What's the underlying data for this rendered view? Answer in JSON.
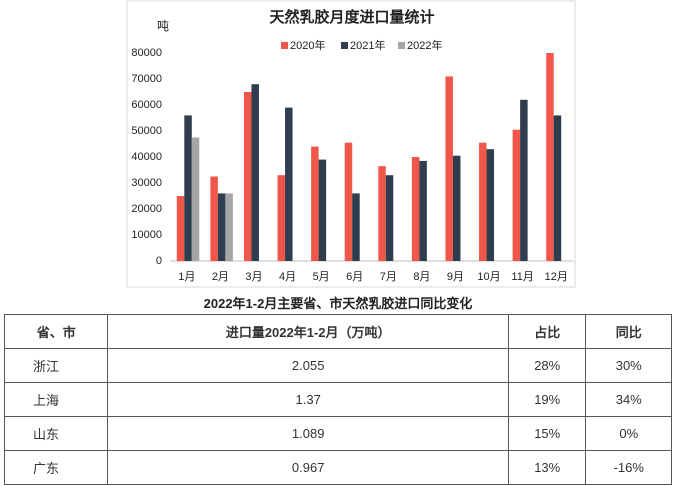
{
  "chart_data": {
    "type": "bar",
    "title": "天然乳胶月度进口量统计",
    "y_label": "吨",
    "categories": [
      "1月",
      "2月",
      "3月",
      "4月",
      "5月",
      "6月",
      "7月",
      "8月",
      "9月",
      "10月",
      "11月",
      "12月"
    ],
    "series": [
      {
        "name": "2020年",
        "color": "#f0574a",
        "values": [
          25000,
          32500,
          65000,
          33000,
          44000,
          45500,
          36500,
          40000,
          71000,
          45500,
          50500,
          80000
        ]
      },
      {
        "name": "2021年",
        "color": "#2e3e4e",
        "values": [
          56000,
          26000,
          68000,
          59000,
          39000,
          26000,
          33000,
          38500,
          40500,
          43000,
          62000,
          56000
        ]
      },
      {
        "name": "2022年",
        "color": "#a6a6a6",
        "values": [
          47500,
          26000,
          null,
          null,
          null,
          null,
          null,
          null,
          null,
          null,
          null,
          null
        ]
      }
    ],
    "ylim": [
      0,
      80000
    ],
    "yticks": [
      0,
      10000,
      20000,
      30000,
      40000,
      50000,
      60000,
      70000,
      80000
    ],
    "grid": false,
    "legend": "top"
  },
  "table": {
    "caption": "2022年1-2月主要省、市天然乳胶进口同比变化",
    "header": [
      "省、市",
      "进口量2022年1-2月（万吨）",
      "占比",
      "同比"
    ],
    "rows": [
      [
        "浙江",
        "2.055",
        "28%",
        "30%"
      ],
      [
        "上海",
        "1.37",
        "19%",
        "34%"
      ],
      [
        "山东",
        "1.089",
        "15%",
        "0%"
      ],
      [
        "广东",
        "0.967",
        "13%",
        "-16%"
      ]
    ]
  }
}
